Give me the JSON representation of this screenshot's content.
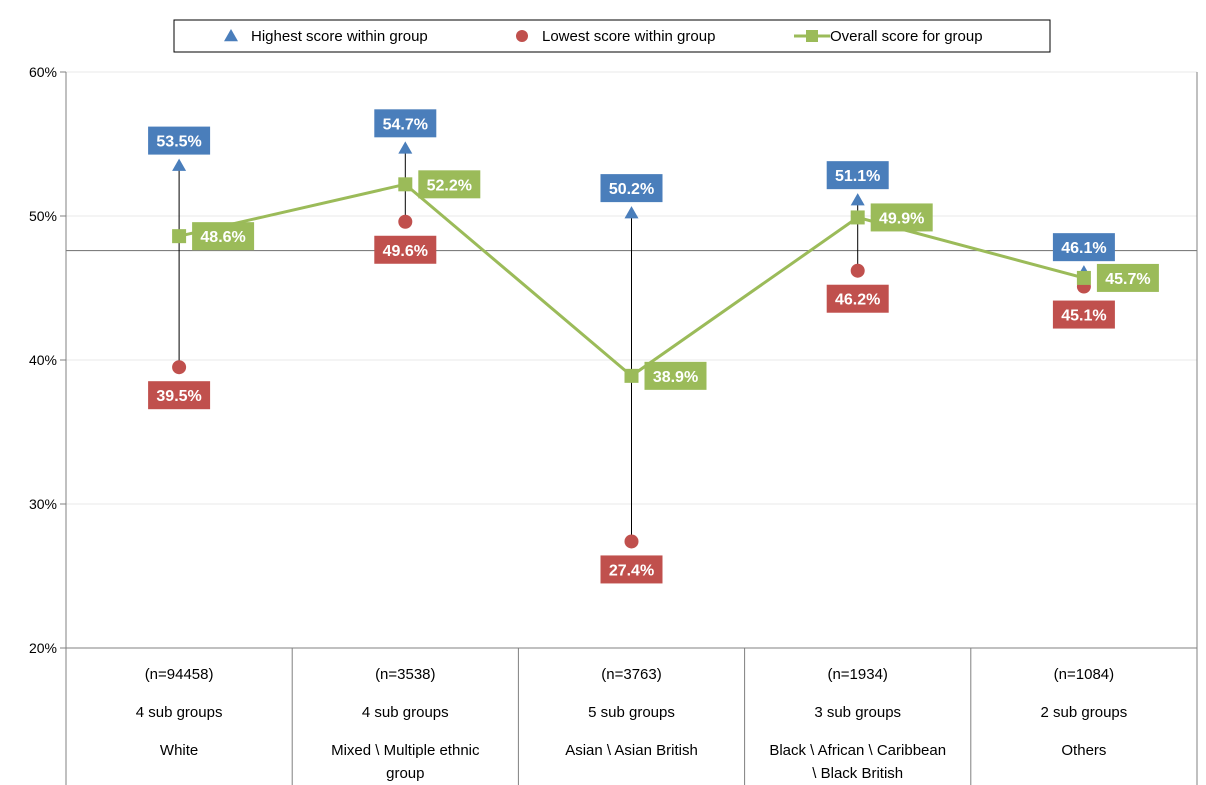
{
  "chart_data": {
    "type": "line",
    "ylim": [
      0.2,
      0.6
    ],
    "yticks": [
      0.2,
      0.3,
      0.4,
      0.5,
      0.6
    ],
    "ytick_labels": [
      "20%",
      "30%",
      "40%",
      "50%",
      "60%"
    ],
    "grid": true,
    "legend_position": "top",
    "reference_line": 0.476,
    "categories": [
      {
        "n": "(n=94458)",
        "subgroups": "4 sub groups",
        "label_lines": [
          "White"
        ]
      },
      {
        "n": "(n=3538)",
        "subgroups": "4 sub groups",
        "label_lines": [
          "Mixed \\ Multiple ethnic",
          "group"
        ]
      },
      {
        "n": "(n=3763)",
        "subgroups": "5 sub groups",
        "label_lines": [
          "Asian \\ Asian British"
        ]
      },
      {
        "n": "(n=1934)",
        "subgroups": "3 sub groups",
        "label_lines": [
          "Black \\ African \\ Caribbean",
          "\\ Black British"
        ]
      },
      {
        "n": "(n=1084)",
        "subgroups": "2 sub groups",
        "label_lines": [
          "Others"
        ]
      }
    ],
    "series": [
      {
        "name": "Highest score within group",
        "marker": "triangle",
        "color": "#4a7ebb",
        "values": [
          0.535,
          0.547,
          0.502,
          0.511,
          0.461
        ],
        "labels": [
          "53.5%",
          "54.7%",
          "50.2%",
          "51.1%",
          "46.1%"
        ],
        "label_side": "above"
      },
      {
        "name": "Lowest score within group",
        "marker": "circle",
        "color": "#c0504d",
        "values": [
          0.395,
          0.496,
          0.274,
          0.462,
          0.451
        ],
        "labels": [
          "39.5%",
          "49.6%",
          "27.4%",
          "46.2%",
          "45.1%"
        ],
        "label_side": "below"
      },
      {
        "name": "Overall score for group",
        "marker": "square",
        "color": "#9bbb59",
        "line": true,
        "values": [
          0.486,
          0.522,
          0.389,
          0.499,
          0.457
        ],
        "labels": [
          "48.6%",
          "52.2%",
          "38.9%",
          "49.9%",
          "45.7%"
        ],
        "label_side": "right"
      }
    ]
  }
}
